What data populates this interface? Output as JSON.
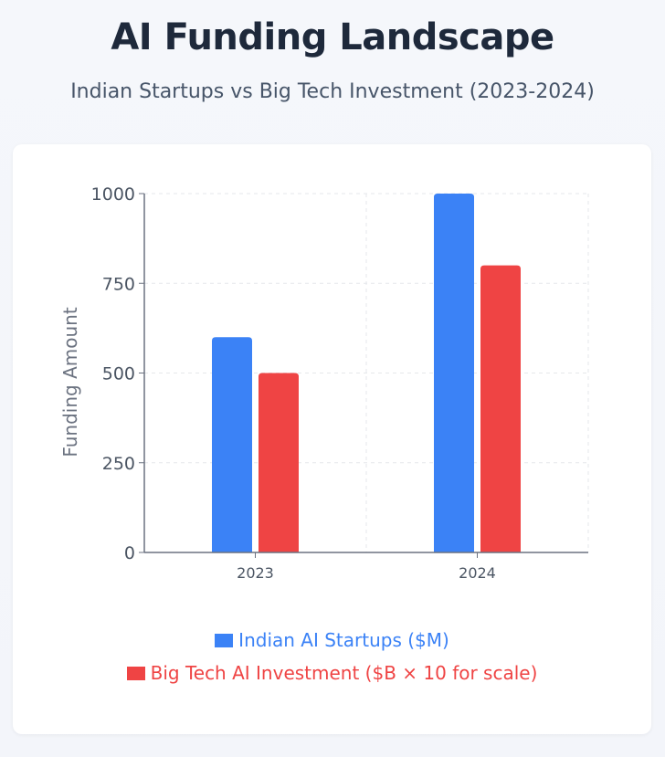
{
  "header": {
    "title": "AI Funding Landscape",
    "subtitle": "Indian Startups vs Big Tech Investment (2023-2024)"
  },
  "colors": {
    "indian": "#3b82f6",
    "bigtech": "#ef4444",
    "axis": "#6b7280",
    "grid": "#e5e7eb"
  },
  "chart_data": {
    "type": "bar",
    "categories": [
      "2023",
      "2024"
    ],
    "series": [
      {
        "name": "Indian AI Startups ($M)",
        "values": [
          600,
          1000
        ]
      },
      {
        "name": "Big Tech AI Investment ($B × 10 for scale)",
        "values": [
          500,
          800
        ]
      }
    ],
    "ylabel": "Funding Amount",
    "xlabel": "",
    "ylim": [
      0,
      1000
    ],
    "yticks": [
      0,
      250,
      500,
      750,
      1000
    ],
    "grid": true,
    "legend_position": "bottom"
  }
}
